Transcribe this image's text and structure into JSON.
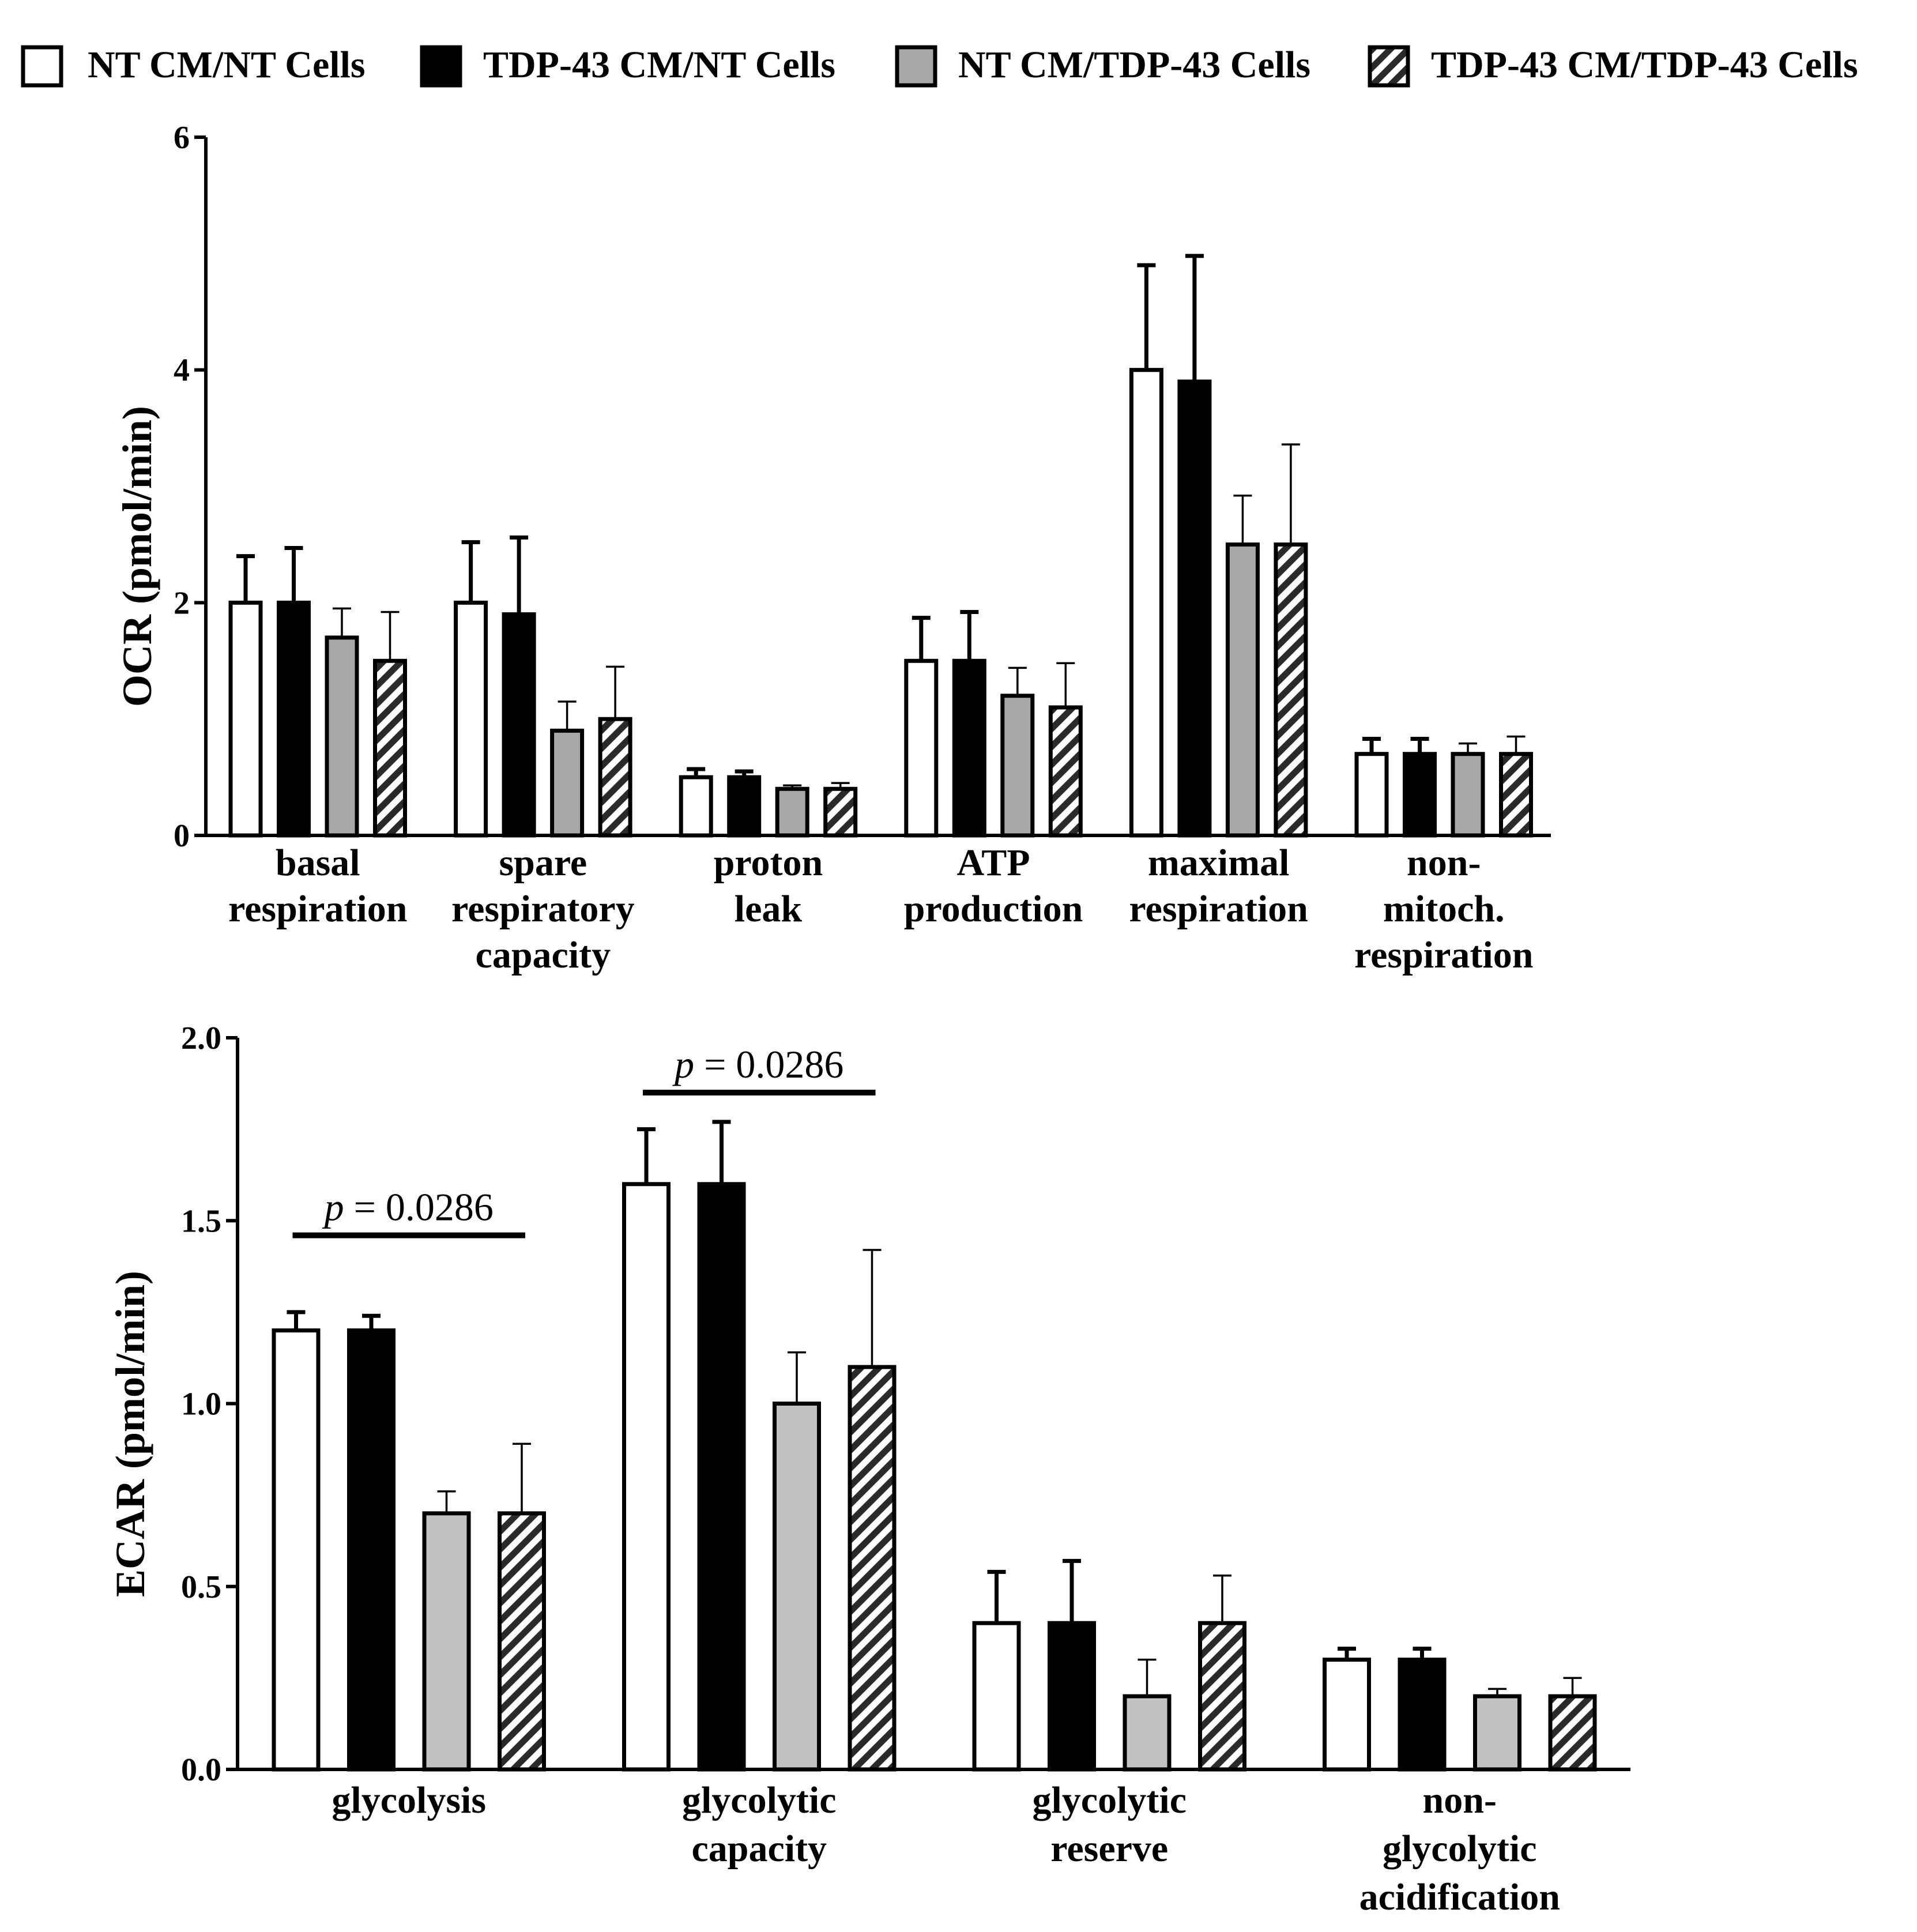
{
  "legend": [
    {
      "name": "NT CM/NT Cells",
      "style": "white"
    },
    {
      "name": "TDP-43 CM/NT Cells",
      "style": "black"
    },
    {
      "name": "NT CM/TDP-43 Cells",
      "style": "gray"
    },
    {
      "name": "TDP-43 CM/TDP-43 Cells",
      "style": "hatched"
    }
  ],
  "colors": {
    "white": "#ffffff",
    "black": "#000000",
    "gray_top": "#a8a8a8",
    "gray_bottom": "#c2c2c2",
    "stroke": "#000000"
  },
  "chart_data": [
    {
      "type": "bar",
      "title": "",
      "xlabel": "",
      "ylabel": "OCR (pmol/min)",
      "ylim": [
        0,
        6
      ],
      "yticks": [
        0,
        2,
        4,
        6
      ],
      "ytick_labels": [
        "0",
        "2",
        "4",
        "6"
      ],
      "categories": [
        "basal respiration",
        "spare respiratory capacity",
        "proton leak",
        "ATP production",
        "maximal respiration",
        "non-mitoch. respiration"
      ],
      "category_label_lines": [
        [
          "basal",
          "respiration"
        ],
        [
          "spare",
          "respiratory",
          "capacity"
        ],
        [
          "proton",
          "leak"
        ],
        [
          "ATP",
          "production"
        ],
        [
          "maximal",
          "respiration"
        ],
        [
          "non-",
          "mitoch.",
          "respiration"
        ]
      ],
      "series": [
        {
          "name": "NT CM/NT Cells",
          "values": [
            2.0,
            2.0,
            0.5,
            1.5,
            4.0,
            0.7
          ],
          "errors": [
            0.4,
            0.52,
            0.07,
            0.37,
            0.9,
            0.13
          ]
        },
        {
          "name": "TDP-43 CM/NT Cells",
          "values": [
            2.0,
            1.9,
            0.5,
            1.5,
            3.9,
            0.7
          ],
          "errors": [
            0.47,
            0.66,
            0.05,
            0.42,
            1.08,
            0.13
          ]
        },
        {
          "name": "NT CM/TDP-43 Cells",
          "values": [
            1.7,
            0.9,
            0.4,
            1.2,
            2.5,
            0.7
          ],
          "errors": [
            0.25,
            0.25,
            0.03,
            0.24,
            0.42,
            0.09
          ]
        },
        {
          "name": "TDP-43 CM/TDP-43 Cells",
          "values": [
            1.5,
            1.0,
            0.4,
            1.1,
            2.5,
            0.7
          ],
          "errors": [
            0.42,
            0.45,
            0.05,
            0.38,
            0.86,
            0.15
          ]
        }
      ],
      "annotations": []
    },
    {
      "type": "bar",
      "title": "",
      "xlabel": "",
      "ylabel": "ECAR (pmol/min)",
      "ylim": [
        0,
        2
      ],
      "yticks": [
        0,
        0.5,
        1.0,
        1.5,
        2.0
      ],
      "ytick_labels": [
        "0.0",
        "0.5",
        "1.0",
        "1.5",
        "2.0"
      ],
      "categories": [
        "glycolysis",
        "glycolytic capacity",
        "glycolytic reserve",
        "non-glycolytic acidification"
      ],
      "category_label_lines": [
        [
          "glycolysis"
        ],
        [
          "glycolytic",
          "capacity"
        ],
        [
          "glycolytic",
          "reserve"
        ],
        [
          "non-",
          "glycolytic",
          "acidification"
        ]
      ],
      "series": [
        {
          "name": "NT CM/NT Cells",
          "values": [
            1.2,
            1.6,
            0.4,
            0.3
          ],
          "errors": [
            0.05,
            0.15,
            0.14,
            0.03
          ]
        },
        {
          "name": "TDP-43 CM/NT Cells",
          "values": [
            1.2,
            1.6,
            0.4,
            0.3
          ],
          "errors": [
            0.04,
            0.17,
            0.17,
            0.03
          ]
        },
        {
          "name": "NT CM/TDP-43 Cells",
          "values": [
            0.7,
            1.0,
            0.2,
            0.2
          ],
          "errors": [
            0.06,
            0.14,
            0.1,
            0.02
          ]
        },
        {
          "name": "TDP-43 CM/TDP-43 Cells",
          "values": [
            0.7,
            1.1,
            0.4,
            0.2
          ],
          "errors": [
            0.19,
            0.32,
            0.13,
            0.05
          ]
        }
      ],
      "annotations": [
        {
          "p_label": "p",
          "text": " = 0.0286",
          "category_index": 0,
          "from_series": 0,
          "to_series": 3,
          "y": 1.46
        },
        {
          "p_label": "p",
          "text": " = 0.0286",
          "category_index": 1,
          "from_series": 0,
          "to_series": 3,
          "y": 1.85
        }
      ]
    }
  ]
}
